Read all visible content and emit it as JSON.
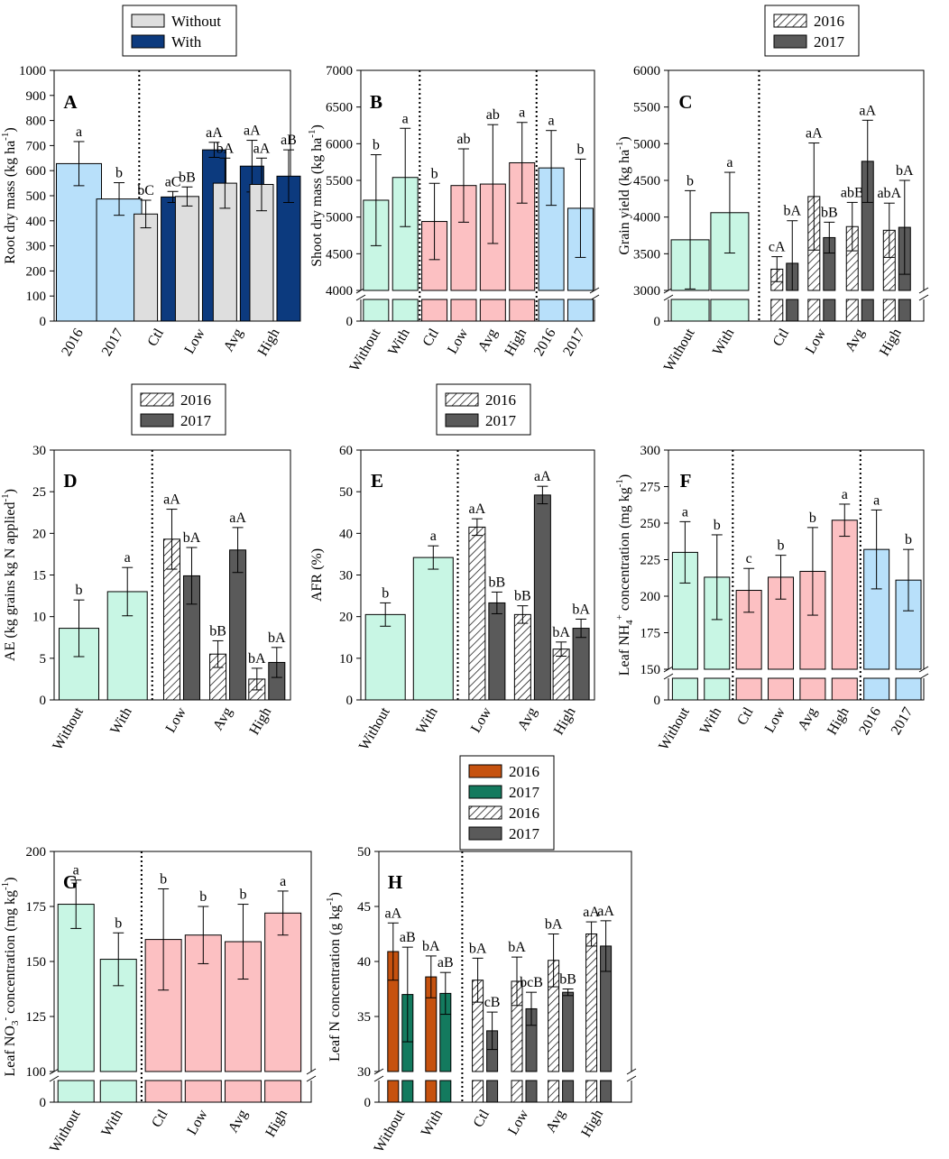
{
  "colors": {
    "blue_light": "#b8e0fa",
    "navy": "#0c3a7e",
    "grey_light": "#dedede",
    "mint": "#c8f6e4",
    "pink": "#fcc0c2",
    "dark_grey": "#5a5a5a",
    "orange": "#c6520f",
    "green": "#137a5e"
  },
  "legends": [
    {
      "id": "legend-1",
      "entries": [
        {
          "label": "Without",
          "fill": "grey_light"
        },
        {
          "label": "With",
          "fill": "navy"
        }
      ]
    },
    {
      "id": "legend-2",
      "entries": [
        {
          "label": "2016",
          "fill": "hatch"
        },
        {
          "label": "2017",
          "fill": "dark_grey"
        }
      ]
    },
    {
      "id": "legend-3",
      "entries": [
        {
          "label": "2016",
          "fill": "hatch"
        },
        {
          "label": "2017",
          "fill": "dark_grey"
        }
      ]
    },
    {
      "id": "legend-4",
      "entries": [
        {
          "label": "2016",
          "fill": "hatch"
        },
        {
          "label": "2017",
          "fill": "dark_grey"
        }
      ]
    },
    {
      "id": "legend-5",
      "entries": [
        {
          "label": "2016",
          "fill": "orange"
        },
        {
          "label": "2017",
          "fill": "green"
        },
        {
          "label": "2016",
          "fill": "hatch"
        },
        {
          "label": "2017",
          "fill": "dark_grey"
        }
      ]
    }
  ],
  "chart_data": [
    {
      "id": "A",
      "panel_label": "A",
      "type": "bar",
      "ylabel": "Root dry mass (kg ha",
      "ylabel_sup": "-1",
      "ylabel_tail": ")",
      "yticks": [
        0,
        100,
        200,
        300,
        400,
        500,
        600,
        700,
        800,
        900,
        1000
      ],
      "ylim": [
        0,
        1000
      ],
      "separators_after_slot": [
        2
      ],
      "categories": [
        {
          "label": "2016",
          "bars": [
            {
              "value": 628,
              "err": 88,
              "fill": "blue_light",
              "letter": "a"
            }
          ]
        },
        {
          "label": "2017",
          "bars": [
            {
              "value": 487,
              "err": 65,
              "fill": "blue_light",
              "letter": "b"
            }
          ]
        },
        {
          "label": "Ctl",
          "bars": [
            {
              "value": 427,
              "err": 55,
              "fill": "grey_light",
              "letter": "bC"
            },
            {
              "value": 495,
              "err": 22,
              "fill": "navy",
              "letter": "aC"
            }
          ]
        },
        {
          "label": "Low",
          "bars": [
            {
              "value": 497,
              "err": 38,
              "fill": "grey_light",
              "letter": "bB"
            },
            {
              "value": 683,
              "err": 30,
              "fill": "navy",
              "letter": "aA"
            }
          ]
        },
        {
          "label": "Avg",
          "bars": [
            {
              "value": 550,
              "err": 100,
              "fill": "grey_light",
              "letter": "bA"
            },
            {
              "value": 618,
              "err": 103,
              "fill": "navy",
              "letter": "aA"
            }
          ]
        },
        {
          "label": "High",
          "bars": [
            {
              "value": 545,
              "err": 105,
              "fill": "grey_light",
              "letter": "aA"
            },
            {
              "value": 578,
              "err": 105,
              "fill": "navy",
              "letter": "aB"
            }
          ]
        }
      ]
    },
    {
      "id": "B",
      "panel_label": "B",
      "type": "bar",
      "ylabel": "Shoot dry mass (kg ha",
      "ylabel_sup": "-1",
      "ylabel_tail": ")",
      "yticks": [
        4000,
        4500,
        5000,
        5500,
        6000,
        6500,
        7000
      ],
      "ylim": [
        4000,
        7000
      ],
      "broken_axis": true,
      "base_tick": 0,
      "separators_after_slot": [
        2,
        6
      ],
      "categories": [
        {
          "label": "Without",
          "bars": [
            {
              "value": 5230,
              "err": 620,
              "fill": "mint",
              "letter": "b"
            }
          ]
        },
        {
          "label": "With",
          "bars": [
            {
              "value": 5540,
              "err": 670,
              "fill": "mint",
              "letter": "a"
            }
          ]
        },
        {
          "label": "Ctl",
          "bars": [
            {
              "value": 4940,
              "err": 520,
              "fill": "pink",
              "letter": "b"
            }
          ]
        },
        {
          "label": "Low",
          "bars": [
            {
              "value": 5430,
              "err": 500,
              "fill": "pink",
              "letter": "ab"
            }
          ]
        },
        {
          "label": "Avg",
          "bars": [
            {
              "value": 5450,
              "err": 810,
              "fill": "pink",
              "letter": "ab"
            }
          ]
        },
        {
          "label": "High",
          "bars": [
            {
              "value": 5740,
              "err": 550,
              "fill": "pink",
              "letter": "a"
            }
          ]
        },
        {
          "label": "2016",
          "bars": [
            {
              "value": 5670,
              "err": 510,
              "fill": "blue_light",
              "letter": "a"
            }
          ]
        },
        {
          "label": "2017",
          "bars": [
            {
              "value": 5120,
              "err": 670,
              "fill": "blue_light",
              "letter": "b"
            }
          ]
        }
      ]
    },
    {
      "id": "C",
      "panel_label": "C",
      "type": "bar",
      "ylabel": "Grain yield (kg ha",
      "ylabel_sup": "-1",
      "ylabel_tail": ")",
      "yticks": [
        3000,
        3500,
        4000,
        4500,
        5000,
        5500,
        6000
      ],
      "ylim": [
        3000,
        6000
      ],
      "broken_axis": true,
      "base_tick": 0,
      "separators_after_slot": [
        2
      ],
      "categories": [
        {
          "label": "Without",
          "bars": [
            {
              "value": 3690,
              "err": 670,
              "fill": "mint",
              "letter": "b"
            }
          ]
        },
        {
          "label": "With",
          "bars": [
            {
              "value": 4060,
              "err": 550,
              "fill": "mint",
              "letter": "a"
            }
          ]
        },
        {
          "label": "Ctl",
          "bars": [
            {
              "value": 3290,
              "err": 170,
              "fill": "hatch",
              "letter": "cA"
            },
            {
              "value": 3370,
              "err": 580,
              "fill": "dark_grey",
              "letter": "bA"
            }
          ]
        },
        {
          "label": "Low",
          "bars": [
            {
              "value": 4280,
              "err": 730,
              "fill": "hatch",
              "letter": "aA"
            },
            {
              "value": 3720,
              "err": 210,
              "fill": "dark_grey",
              "letter": "bB"
            }
          ]
        },
        {
          "label": "Avg",
          "bars": [
            {
              "value": 3870,
              "err": 330,
              "fill": "hatch",
              "letter": "abB"
            },
            {
              "value": 4760,
              "err": 560,
              "fill": "dark_grey",
              "letter": "aA"
            }
          ]
        },
        {
          "label": "High",
          "bars": [
            {
              "value": 3820,
              "err": 370,
              "fill": "hatch",
              "letter": "abA"
            },
            {
              "value": 3860,
              "err": 640,
              "fill": "dark_grey",
              "letter": "bA"
            }
          ]
        }
      ]
    },
    {
      "id": "D",
      "panel_label": "D",
      "type": "bar",
      "ylabel": "AE (kg grains kg N applied",
      "ylabel_sup": "-1",
      "ylabel_tail": ")",
      "yticks": [
        0,
        5,
        10,
        15,
        20,
        25,
        30
      ],
      "ylim": [
        0,
        30
      ],
      "separators_after_slot": [
        2
      ],
      "categories": [
        {
          "label": "Without",
          "bars": [
            {
              "value": 8.6,
              "err": 3.4,
              "fill": "mint",
              "letter": "b"
            }
          ]
        },
        {
          "label": "With",
          "bars": [
            {
              "value": 13.0,
              "err": 2.9,
              "fill": "mint",
              "letter": "a"
            }
          ]
        },
        {
          "label": "Low",
          "bars": [
            {
              "value": 19.3,
              "err": 3.6,
              "fill": "hatch",
              "letter": "aA"
            },
            {
              "value": 14.9,
              "err": 3.4,
              "fill": "dark_grey",
              "letter": "bA"
            }
          ]
        },
        {
          "label": "Avg",
          "bars": [
            {
              "value": 5.5,
              "err": 1.6,
              "fill": "hatch",
              "letter": "bB"
            },
            {
              "value": 18.0,
              "err": 2.7,
              "fill": "dark_grey",
              "letter": "aA"
            }
          ]
        },
        {
          "label": "High",
          "bars": [
            {
              "value": 2.5,
              "err": 1.3,
              "fill": "hatch",
              "letter": "bA"
            },
            {
              "value": 4.5,
              "err": 1.8,
              "fill": "dark_grey",
              "letter": "bA"
            }
          ]
        }
      ]
    },
    {
      "id": "E",
      "panel_label": "E",
      "type": "bar",
      "ylabel": "AFR (%)",
      "ylabel_sup": "",
      "ylabel_tail": "",
      "yticks": [
        0,
        10,
        20,
        30,
        40,
        50,
        60
      ],
      "ylim": [
        0,
        60
      ],
      "separators_after_slot": [
        2
      ],
      "categories": [
        {
          "label": "Without",
          "bars": [
            {
              "value": 20.5,
              "err": 2.8,
              "fill": "mint",
              "letter": "b"
            }
          ]
        },
        {
          "label": "With",
          "bars": [
            {
              "value": 34.2,
              "err": 2.8,
              "fill": "mint",
              "letter": "a"
            }
          ]
        },
        {
          "label": "Low",
          "bars": [
            {
              "value": 41.5,
              "err": 2.0,
              "fill": "hatch",
              "letter": "aA"
            },
            {
              "value": 23.3,
              "err": 2.6,
              "fill": "dark_grey",
              "letter": "bB"
            }
          ]
        },
        {
          "label": "Avg",
          "bars": [
            {
              "value": 20.5,
              "err": 2.1,
              "fill": "hatch",
              "letter": "bB"
            },
            {
              "value": 49.2,
              "err": 2.1,
              "fill": "dark_grey",
              "letter": "aA"
            }
          ]
        },
        {
          "label": "High",
          "bars": [
            {
              "value": 12.2,
              "err": 1.7,
              "fill": "hatch",
              "letter": "bA"
            },
            {
              "value": 17.2,
              "err": 2.2,
              "fill": "dark_grey",
              "letter": "bA"
            }
          ]
        }
      ]
    },
    {
      "id": "F",
      "panel_label": "F",
      "type": "bar",
      "ylabel": "Leaf NH",
      "ylabel_sub": "4",
      "ylabel_sup": "+",
      "ylabel_tail": " concentration (mg kg",
      "ylabel_sup2": "-1",
      "ylabel_tail2": ")",
      "yticks": [
        150,
        175,
        200,
        225,
        250,
        275,
        300
      ],
      "ylim": [
        150,
        300
      ],
      "broken_axis": true,
      "base_tick": 0,
      "separators_after_slot": [
        2,
        6
      ],
      "categories": [
        {
          "label": "Without",
          "bars": [
            {
              "value": 230,
              "err": 21,
              "fill": "mint",
              "letter": "a"
            }
          ]
        },
        {
          "label": "With",
          "bars": [
            {
              "value": 213,
              "err": 29,
              "fill": "mint",
              "letter": "b"
            }
          ]
        },
        {
          "label": "Ctl",
          "bars": [
            {
              "value": 204,
              "err": 15,
              "fill": "pink",
              "letter": "c"
            }
          ]
        },
        {
          "label": "Low",
          "bars": [
            {
              "value": 213,
              "err": 15,
              "fill": "pink",
              "letter": "b"
            }
          ]
        },
        {
          "label": "Avg",
          "bars": [
            {
              "value": 217,
              "err": 30,
              "fill": "pink",
              "letter": "b"
            }
          ]
        },
        {
          "label": "High",
          "bars": [
            {
              "value": 252,
              "err": 11,
              "fill": "pink",
              "letter": "a"
            }
          ]
        },
        {
          "label": "2016",
          "bars": [
            {
              "value": 232,
              "err": 27,
              "fill": "blue_light",
              "letter": "a"
            }
          ]
        },
        {
          "label": "2017",
          "bars": [
            {
              "value": 211,
              "err": 21,
              "fill": "blue_light",
              "letter": "b"
            }
          ]
        }
      ]
    },
    {
      "id": "G",
      "panel_label": "G",
      "type": "bar",
      "ylabel": "Leaf NO",
      "ylabel_sub": "3",
      "ylabel_sup": "-",
      "ylabel_tail": " concentration (mg kg",
      "ylabel_sup2": "-1",
      "ylabel_tail2": ")",
      "yticks": [
        100,
        125,
        150,
        175,
        200
      ],
      "ylim": [
        100,
        200
      ],
      "broken_axis": true,
      "base_tick": 0,
      "separators_after_slot": [
        2
      ],
      "categories": [
        {
          "label": "Without",
          "bars": [
            {
              "value": 176,
              "err": 11,
              "fill": "mint",
              "letter": "a"
            }
          ]
        },
        {
          "label": "With",
          "bars": [
            {
              "value": 151,
              "err": 12,
              "fill": "mint",
              "letter": "b"
            }
          ]
        },
        {
          "label": "Ctl",
          "bars": [
            {
              "value": 160,
              "err": 23,
              "fill": "pink",
              "letter": "b"
            }
          ]
        },
        {
          "label": "Low",
          "bars": [
            {
              "value": 162,
              "err": 13,
              "fill": "pink",
              "letter": "b"
            }
          ]
        },
        {
          "label": "Avg",
          "bars": [
            {
              "value": 159,
              "err": 17,
              "fill": "pink",
              "letter": "b"
            }
          ]
        },
        {
          "label": "High",
          "bars": [
            {
              "value": 172,
              "err": 10,
              "fill": "pink",
              "letter": "a"
            }
          ]
        }
      ]
    },
    {
      "id": "H",
      "panel_label": "H",
      "type": "bar",
      "ylabel": "Leaf N concentration (g kg",
      "ylabel_sup": "-1",
      "ylabel_tail": ")",
      "yticks": [
        30,
        35,
        40,
        45,
        50
      ],
      "ylim": [
        30,
        50
      ],
      "broken_axis": true,
      "base_tick": 0,
      "separators_after_slot": [
        2
      ],
      "categories": [
        {
          "label": "Without",
          "bars": [
            {
              "value": 40.9,
              "err": 2.6,
              "fill": "orange",
              "letter": "aA"
            },
            {
              "value": 37.0,
              "err": 4.3,
              "fill": "green",
              "letter": "aB"
            }
          ]
        },
        {
          "label": "With",
          "bars": [
            {
              "value": 38.6,
              "err": 1.9,
              "fill": "orange",
              "letter": "bA"
            },
            {
              "value": 37.1,
              "err": 1.9,
              "fill": "green",
              "letter": "aB"
            }
          ]
        },
        {
          "label": "Ctl",
          "bars": [
            {
              "value": 38.3,
              "err": 2.0,
              "fill": "hatch",
              "letter": "bA"
            },
            {
              "value": 33.7,
              "err": 1.7,
              "fill": "dark_grey",
              "letter": "cB"
            }
          ]
        },
        {
          "label": "Low",
          "bars": [
            {
              "value": 38.2,
              "err": 2.2,
              "fill": "hatch",
              "letter": "bA"
            },
            {
              "value": 35.7,
              "err": 1.5,
              "fill": "dark_grey",
              "letter": "bcB"
            }
          ]
        },
        {
          "label": "Avg",
          "bars": [
            {
              "value": 40.1,
              "err": 2.4,
              "fill": "hatch",
              "letter": "bA"
            },
            {
              "value": 37.2,
              "err": 0.3,
              "fill": "dark_grey",
              "letter": "bB"
            }
          ]
        },
        {
          "label": "High",
          "bars": [
            {
              "value": 42.5,
              "err": 1.1,
              "fill": "hatch",
              "letter": "aA"
            },
            {
              "value": 41.4,
              "err": 2.3,
              "fill": "dark_grey",
              "letter": "aA"
            }
          ]
        }
      ]
    }
  ]
}
